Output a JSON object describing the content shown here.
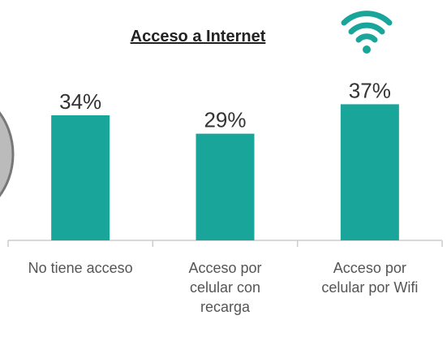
{
  "chart_data": {
    "type": "bar",
    "title": "Acceso a Internet",
    "categories": [
      "No tiene acceso",
      "Acceso por celular con recarga",
      "Acceso por celular por Wifi"
    ],
    "values": [
      34,
      29,
      37
    ],
    "value_labels": [
      "34%",
      "29%",
      "37%"
    ],
    "color": "#1aa59b"
  }
}
